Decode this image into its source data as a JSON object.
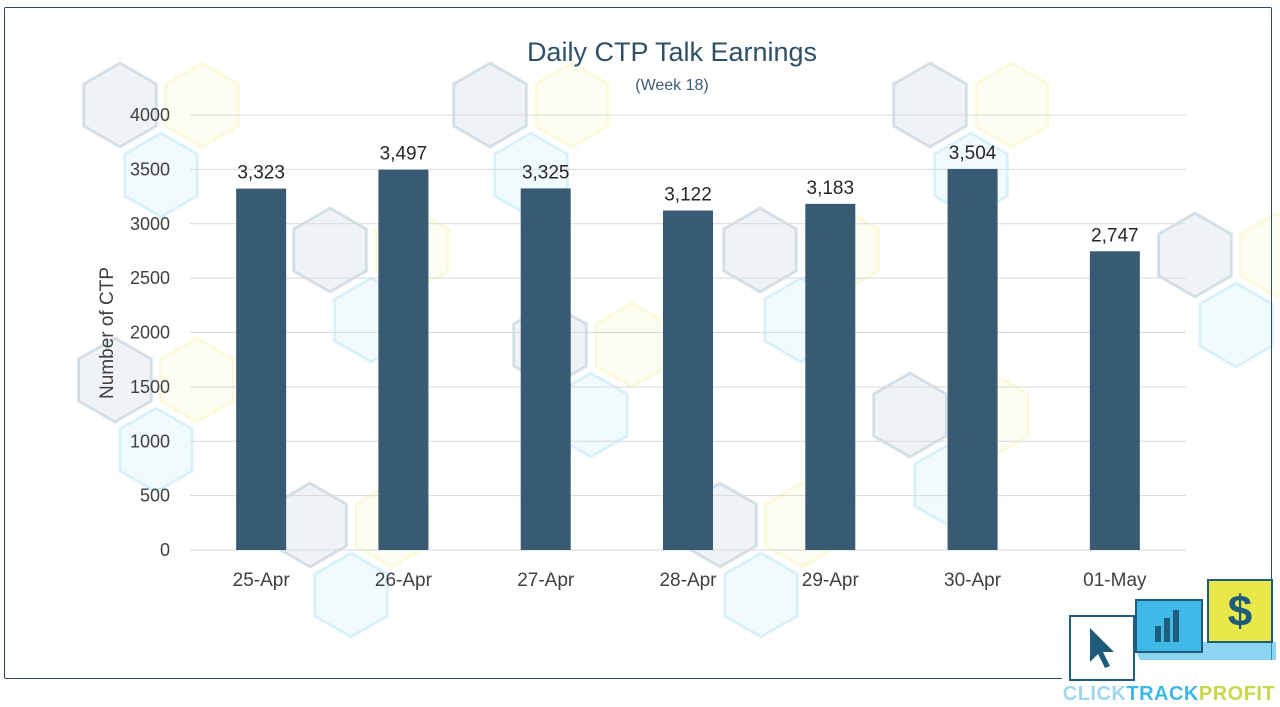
{
  "chart_data": {
    "type": "bar",
    "title": "Daily CTP Talk Earnings",
    "subtitle": "(Week 18)",
    "xlabel": "",
    "ylabel": "Number of CTP",
    "categories": [
      "25-Apr",
      "26-Apr",
      "27-Apr",
      "28-Apr",
      "29-Apr",
      "30-Apr",
      "01-May"
    ],
    "values": [
      3323,
      3497,
      3325,
      3122,
      3183,
      3504,
      2747
    ],
    "data_labels": [
      "3,323",
      "3,497",
      "3,325",
      "3,122",
      "3,183",
      "3,504",
      "2,747"
    ],
    "yticks": [
      "0",
      "500",
      "1000",
      "1500",
      "2000",
      "2500",
      "3000",
      "3500",
      "4000"
    ],
    "ylim": [
      0,
      4000
    ],
    "grid": true,
    "legend": "none",
    "bar_color": "#385a73"
  },
  "logo": {
    "brand_parts": [
      "CLICK",
      "TRACK",
      "PROFIT"
    ],
    "icons": [
      "cursor-icon",
      "bar-chart-icon",
      "dollar-icon"
    ],
    "colors": [
      "#1f5b7a",
      "#3fb8e8",
      "#e8e84a"
    ]
  }
}
